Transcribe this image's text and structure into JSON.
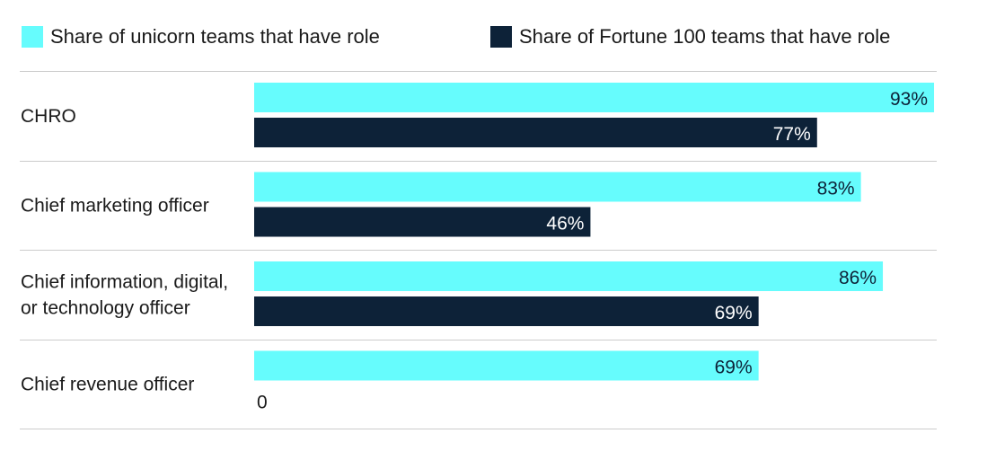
{
  "chart_data": {
    "type": "bar",
    "orientation": "horizontal",
    "title": "",
    "xlabel": "",
    "ylabel": "",
    "xlim": [
      0,
      100
    ],
    "grid": false,
    "legend_position": "top",
    "categories": [
      [
        "CHRO"
      ],
      [
        "Chief marketing officer"
      ],
      [
        "Chief information, digital,",
        "or technology officer"
      ],
      [
        "Chief revenue officer"
      ]
    ],
    "series": [
      {
        "name": "Share of unicorn teams that have role",
        "color": "#66FCFD",
        "label_color": "#0D2238",
        "values": [
          93,
          83,
          86,
          69
        ],
        "labels": [
          "93%",
          "83%",
          "86%",
          "69%"
        ]
      },
      {
        "name": "Share of Fortune 100 teams that have role",
        "color": "#0D2238",
        "label_color": "#FFFFFF",
        "values": [
          77,
          46,
          69,
          0
        ],
        "labels": [
          "77%",
          "46%",
          "69%",
          "0"
        ]
      }
    ]
  }
}
